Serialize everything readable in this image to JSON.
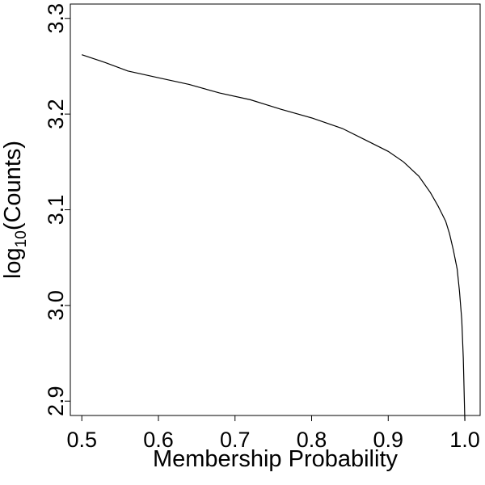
{
  "chart_data": {
    "type": "line",
    "xlabel": "Membership Probability",
    "ylabel": {
      "prefix": "log",
      "subscript": "10",
      "suffix": "(Counts)"
    },
    "xlim": [
      0.485,
      1.02
    ],
    "ylim": [
      2.885,
      3.315
    ],
    "x_ticks": [
      0.5,
      0.6,
      0.7,
      0.8,
      0.9,
      1.0
    ],
    "x_tick_labels": [
      "0.5",
      "0.6",
      "0.7",
      "0.8",
      "0.9",
      "1.0"
    ],
    "y_ticks": [
      2.9,
      3.0,
      3.1,
      3.2,
      3.3
    ],
    "y_tick_labels": [
      "2.9",
      "3.0",
      "3.1",
      "3.2",
      "3.3"
    ],
    "grid": false,
    "series": [
      {
        "color": "#000000",
        "x": [
          0.5,
          0.53,
          0.56,
          0.6,
          0.64,
          0.68,
          0.72,
          0.76,
          0.8,
          0.84,
          0.87,
          0.9,
          0.92,
          0.94,
          0.955,
          0.965,
          0.975,
          0.98,
          0.985,
          0.99,
          0.993,
          0.996,
          0.998,
          1.0
        ],
        "y": [
          3.262,
          3.254,
          3.245,
          3.238,
          3.231,
          3.222,
          3.215,
          3.205,
          3.196,
          3.185,
          3.173,
          3.161,
          3.15,
          3.135,
          3.118,
          3.104,
          3.088,
          3.075,
          3.058,
          3.038,
          3.015,
          2.985,
          2.945,
          2.88
        ]
      }
    ]
  }
}
